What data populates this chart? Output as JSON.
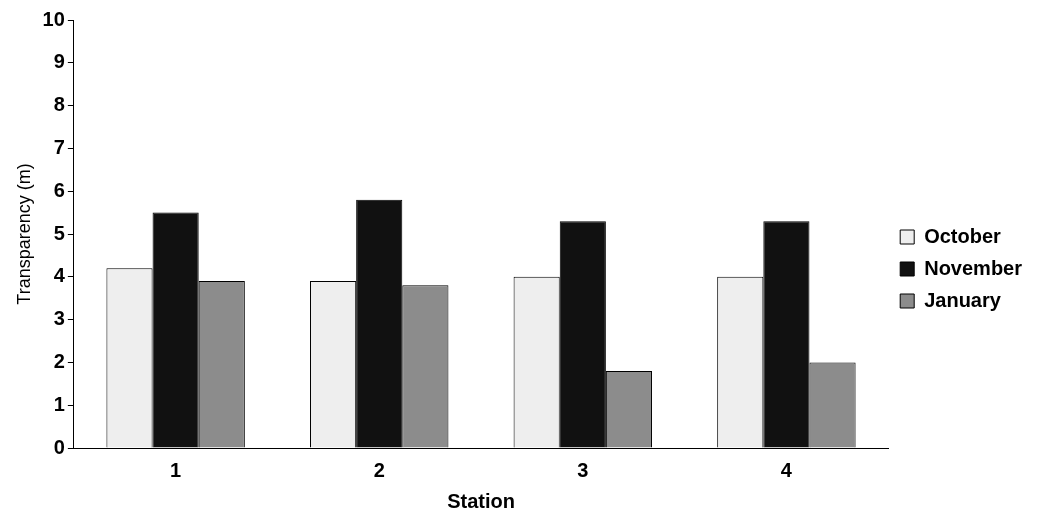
{
  "chart_data": {
    "type": "bar",
    "xlabel": "Station",
    "ylabel": "Transparency (m)",
    "categories": [
      "1",
      "2",
      "3",
      "4"
    ],
    "series": [
      {
        "name": "October",
        "color": "#eeeeee",
        "values": [
          4.2,
          3.9,
          4.0,
          4.0
        ]
      },
      {
        "name": "November",
        "color": "#111111",
        "values": [
          5.5,
          5.8,
          5.3,
          5.3
        ]
      },
      {
        "name": "January",
        "color": "#8c8c8c",
        "values": [
          3.9,
          3.8,
          1.8,
          2.0
        ]
      }
    ],
    "ylim": [
      0,
      10
    ],
    "yticks": [
      0,
      1,
      2,
      3,
      4,
      5,
      6,
      7,
      8,
      9,
      10
    ],
    "grid": false,
    "legend": "right"
  }
}
